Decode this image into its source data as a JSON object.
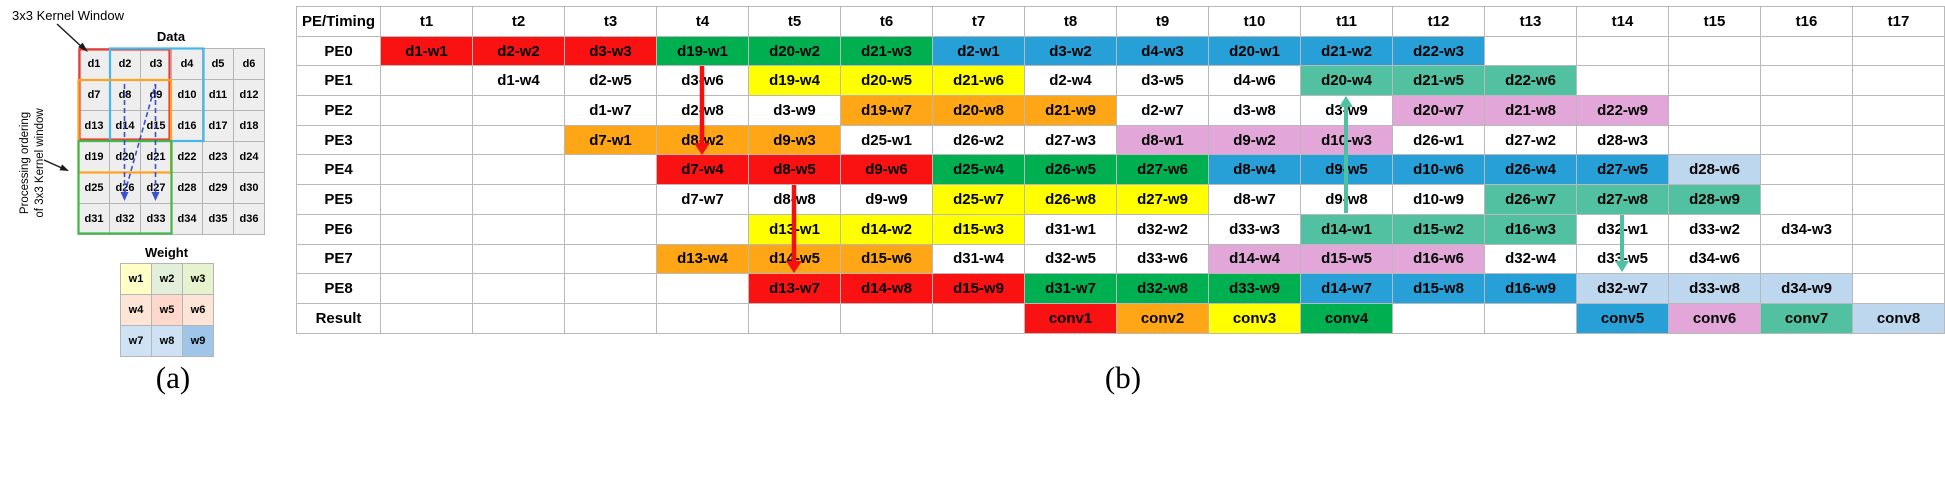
{
  "annotation_colors": {
    "partial_sum": "#f50f0f",
    "reuse": "#4fc0a0",
    "ordering": "#3c50c8",
    "black": "#1a1a1a",
    "window_red": "#ee3b33",
    "window_blue": "#45b7e8",
    "window_orange": "#ffa21f",
    "window_green": "#43b649"
  },
  "panel_a": {
    "kernel_window_label": "3x3 Kernel Window",
    "data_label": "Data",
    "processing_label_line1": "Processing ordering",
    "processing_label_line2": "of 3x3 Kernel window",
    "weight_label": "Weight",
    "caption": "(a)",
    "data_cells": [
      "d1",
      "d2",
      "d3",
      "d4",
      "d5",
      "d6",
      "d7",
      "d8",
      "d9",
      "d10",
      "d11",
      "d12",
      "d13",
      "d14",
      "d15",
      "d16",
      "d17",
      "d18",
      "d19",
      "d20",
      "d21",
      "d22",
      "d23",
      "d24",
      "d25",
      "d26",
      "d27",
      "d28",
      "d29",
      "d30",
      "d31",
      "d32",
      "d33",
      "d34",
      "d35",
      "d36"
    ],
    "weight_cells": [
      {
        "label": "w1",
        "color": "#ffffc6"
      },
      {
        "label": "w2",
        "color": "#e2efda"
      },
      {
        "label": "w3",
        "color": "#e7f2cf"
      },
      {
        "label": "w4",
        "color": "#fce4d6"
      },
      {
        "label": "w5",
        "color": "#fdd8cb"
      },
      {
        "label": "w6",
        "color": "#fce4d6"
      },
      {
        "label": "w7",
        "color": "#cfe2f3"
      },
      {
        "label": "w8",
        "color": "#cfe2f3"
      },
      {
        "label": "w9",
        "color": "#9fc5e8"
      }
    ]
  },
  "panel_b": {
    "caption": "(b)",
    "header": [
      "PE/Timing",
      "t1",
      "t2",
      "t3",
      "t4",
      "t5",
      "t6",
      "t7",
      "t8",
      "t9",
      "t10",
      "t11",
      "t12",
      "t13",
      "t14",
      "t15",
      "t16",
      "t17"
    ],
    "colors": {
      "red": "#fa1111",
      "orange": "#ffa617",
      "yellow": "#ffff00",
      "green": "#00b050",
      "blue": "#27a0d8",
      "lightblue": "#bdd7ee",
      "pink": "#e2a6d8",
      "teal": "#52c1a2",
      "white": "#ffffff"
    },
    "rows": [
      {
        "label": "PE0",
        "cells": [
          {
            "t": 1,
            "v": "d1-w1",
            "c": "red"
          },
          {
            "t": 2,
            "v": "d2-w2",
            "c": "red"
          },
          {
            "t": 3,
            "v": "d3-w3",
            "c": "red"
          },
          {
            "t": 4,
            "v": "d19-w1",
            "c": "green"
          },
          {
            "t": 5,
            "v": "d20-w2",
            "c": "green"
          },
          {
            "t": 6,
            "v": "d21-w3",
            "c": "green"
          },
          {
            "t": 7,
            "v": "d2-w1",
            "c": "blue"
          },
          {
            "t": 8,
            "v": "d3-w2",
            "c": "blue"
          },
          {
            "t": 9,
            "v": "d4-w3",
            "c": "blue"
          },
          {
            "t": 10,
            "v": "d20-w1",
            "c": "blue"
          },
          {
            "t": 11,
            "v": "d21-w2",
            "c": "blue"
          },
          {
            "t": 12,
            "v": "d22-w3",
            "c": "blue"
          }
        ]
      },
      {
        "label": "PE1",
        "cells": [
          {
            "t": 2,
            "v": "d1-w4",
            "c": "white"
          },
          {
            "t": 3,
            "v": "d2-w5",
            "c": "white"
          },
          {
            "t": 4,
            "v": "d3-w6",
            "c": "white"
          },
          {
            "t": 5,
            "v": "d19-w4",
            "c": "yellow"
          },
          {
            "t": 6,
            "v": "d20-w5",
            "c": "yellow"
          },
          {
            "t": 7,
            "v": "d21-w6",
            "c": "yellow"
          },
          {
            "t": 8,
            "v": "d2-w4",
            "c": "white"
          },
          {
            "t": 9,
            "v": "d3-w5",
            "c": "white"
          },
          {
            "t": 10,
            "v": "d4-w6",
            "c": "white"
          },
          {
            "t": 11,
            "v": "d20-w4",
            "c": "teal"
          },
          {
            "t": 12,
            "v": "d21-w5",
            "c": "teal"
          },
          {
            "t": 13,
            "v": "d22-w6",
            "c": "teal"
          }
        ]
      },
      {
        "label": "PE2",
        "cells": [
          {
            "t": 3,
            "v": "d1-w7",
            "c": "white"
          },
          {
            "t": 4,
            "v": "d2-w8",
            "c": "white"
          },
          {
            "t": 5,
            "v": "d3-w9",
            "c": "white"
          },
          {
            "t": 6,
            "v": "d19-w7",
            "c": "orange"
          },
          {
            "t": 7,
            "v": "d20-w8",
            "c": "orange"
          },
          {
            "t": 8,
            "v": "d21-w9",
            "c": "orange"
          },
          {
            "t": 9,
            "v": "d2-w7",
            "c": "white"
          },
          {
            "t": 10,
            "v": "d3-w8",
            "c": "white"
          },
          {
            "t": 11,
            "v": "d3-w9",
            "c": "white"
          },
          {
            "t": 12,
            "v": "d20-w7",
            "c": "pink"
          },
          {
            "t": 13,
            "v": "d21-w8",
            "c": "pink"
          },
          {
            "t": 14,
            "v": "d22-w9",
            "c": "pink"
          }
        ]
      },
      {
        "label": "PE3",
        "cells": [
          {
            "t": 3,
            "v": "d7-w1",
            "c": "orange"
          },
          {
            "t": 4,
            "v": "d8-w2",
            "c": "orange"
          },
          {
            "t": 5,
            "v": "d9-w3",
            "c": "orange"
          },
          {
            "t": 6,
            "v": "d25-w1",
            "c": "white"
          },
          {
            "t": 7,
            "v": "d26-w2",
            "c": "white"
          },
          {
            "t": 8,
            "v": "d27-w3",
            "c": "white"
          },
          {
            "t": 9,
            "v": "d8-w1",
            "c": "pink"
          },
          {
            "t": 10,
            "v": "d9-w2",
            "c": "pink"
          },
          {
            "t": 11,
            "v": "d10-w3",
            "c": "pink"
          },
          {
            "t": 12,
            "v": "d26-w1",
            "c": "white"
          },
          {
            "t": 13,
            "v": "d27-w2",
            "c": "white"
          },
          {
            "t": 14,
            "v": "d28-w3",
            "c": "white"
          }
        ]
      },
      {
        "label": "PE4",
        "cells": [
          {
            "t": 4,
            "v": "d7-w4",
            "c": "red"
          },
          {
            "t": 5,
            "v": "d8-w5",
            "c": "red"
          },
          {
            "t": 6,
            "v": "d9-w6",
            "c": "red"
          },
          {
            "t": 7,
            "v": "d25-w4",
            "c": "green"
          },
          {
            "t": 8,
            "v": "d26-w5",
            "c": "green"
          },
          {
            "t": 9,
            "v": "d27-w6",
            "c": "green"
          },
          {
            "t": 10,
            "v": "d8-w4",
            "c": "blue"
          },
          {
            "t": 11,
            "v": "d9-w5",
            "c": "blue"
          },
          {
            "t": 12,
            "v": "d10-w6",
            "c": "blue"
          },
          {
            "t": 13,
            "v": "d26-w4",
            "c": "blue"
          },
          {
            "t": 14,
            "v": "d27-w5",
            "c": "blue"
          },
          {
            "t": 15,
            "v": "d28-w6",
            "c": "lightblue"
          }
        ]
      },
      {
        "label": "PE5",
        "cells": [
          {
            "t": 4,
            "v": "d7-w7",
            "c": "white"
          },
          {
            "t": 5,
            "v": "d8-w8",
            "c": "white"
          },
          {
            "t": 6,
            "v": "d9-w9",
            "c": "white"
          },
          {
            "t": 7,
            "v": "d25-w7",
            "c": "yellow"
          },
          {
            "t": 8,
            "v": "d26-w8",
            "c": "yellow"
          },
          {
            "t": 9,
            "v": "d27-w9",
            "c": "yellow"
          },
          {
            "t": 10,
            "v": "d8-w7",
            "c": "white"
          },
          {
            "t": 11,
            "v": "d9-w8",
            "c": "white"
          },
          {
            "t": 12,
            "v": "d10-w9",
            "c": "white"
          },
          {
            "t": 13,
            "v": "d26-w7",
            "c": "teal"
          },
          {
            "t": 14,
            "v": "d27-w8",
            "c": "teal"
          },
          {
            "t": 15,
            "v": "d28-w9",
            "c": "teal"
          }
        ]
      },
      {
        "label": "PE6",
        "cells": [
          {
            "t": 5,
            "v": "d13-w1",
            "c": "yellow"
          },
          {
            "t": 6,
            "v": "d14-w2",
            "c": "yellow"
          },
          {
            "t": 7,
            "v": "d15-w3",
            "c": "yellow"
          },
          {
            "t": 8,
            "v": "d31-w1",
            "c": "white"
          },
          {
            "t": 9,
            "v": "d32-w2",
            "c": "white"
          },
          {
            "t": 10,
            "v": "d33-w3",
            "c": "white"
          },
          {
            "t": 11,
            "v": "d14-w1",
            "c": "teal"
          },
          {
            "t": 12,
            "v": "d15-w2",
            "c": "teal"
          },
          {
            "t": 13,
            "v": "d16-w3",
            "c": "teal"
          },
          {
            "t": 14,
            "v": "d32-w1",
            "c": "white"
          },
          {
            "t": 15,
            "v": "d33-w2",
            "c": "white"
          },
          {
            "t": 16,
            "v": "d34-w3",
            "c": "white"
          }
        ]
      },
      {
        "label": "PE7",
        "cells": [
          {
            "t": 4,
            "v": "d13-w4",
            "c": "orange"
          },
          {
            "t": 5,
            "v": "d14-w5",
            "c": "orange"
          },
          {
            "t": 6,
            "v": "d15-w6",
            "c": "orange"
          },
          {
            "t": 7,
            "v": "d31-w4",
            "c": "white"
          },
          {
            "t": 8,
            "v": "d32-w5",
            "c": "white"
          },
          {
            "t": 9,
            "v": "d33-w6",
            "c": "white"
          },
          {
            "t": 10,
            "v": "d14-w4",
            "c": "pink"
          },
          {
            "t": 11,
            "v": "d15-w5",
            "c": "pink"
          },
          {
            "t": 12,
            "v": "d16-w6",
            "c": "pink"
          },
          {
            "t": 13,
            "v": "d32-w4",
            "c": "white"
          },
          {
            "t": 14,
            "v": "d33-w5",
            "c": "white"
          },
          {
            "t": 15,
            "v": "d34-w6",
            "c": "white"
          }
        ]
      },
      {
        "label": "PE8",
        "cells": [
          {
            "t": 5,
            "v": "d13-w7",
            "c": "red"
          },
          {
            "t": 6,
            "v": "d14-w8",
            "c": "red"
          },
          {
            "t": 7,
            "v": "d15-w9",
            "c": "red"
          },
          {
            "t": 8,
            "v": "d31-w7",
            "c": "green"
          },
          {
            "t": 9,
            "v": "d32-w8",
            "c": "green"
          },
          {
            "t": 10,
            "v": "d33-w9",
            "c": "green"
          },
          {
            "t": 11,
            "v": "d14-w7",
            "c": "blue"
          },
          {
            "t": 12,
            "v": "d15-w8",
            "c": "blue"
          },
          {
            "t": 13,
            "v": "d16-w9",
            "c": "blue"
          },
          {
            "t": 14,
            "v": "d32-w7",
            "c": "lightblue"
          },
          {
            "t": 15,
            "v": "d33-w8",
            "c": "lightblue"
          },
          {
            "t": 16,
            "v": "d34-w9",
            "c": "lightblue"
          }
        ]
      },
      {
        "label": "Result",
        "cells": [
          {
            "t": 8,
            "v": "conv1",
            "c": "red"
          },
          {
            "t": 9,
            "v": "conv2",
            "c": "orange"
          },
          {
            "t": 10,
            "v": "conv3",
            "c": "yellow"
          },
          {
            "t": 11,
            "v": "conv4",
            "c": "green"
          },
          {
            "t": 14,
            "v": "conv5",
            "c": "blue"
          },
          {
            "t": 15,
            "v": "conv6",
            "c": "pink"
          },
          {
            "t": 16,
            "v": "conv7",
            "c": "teal"
          },
          {
            "t": 17,
            "v": "conv8",
            "c": "lightblue"
          }
        ]
      }
    ]
  }
}
